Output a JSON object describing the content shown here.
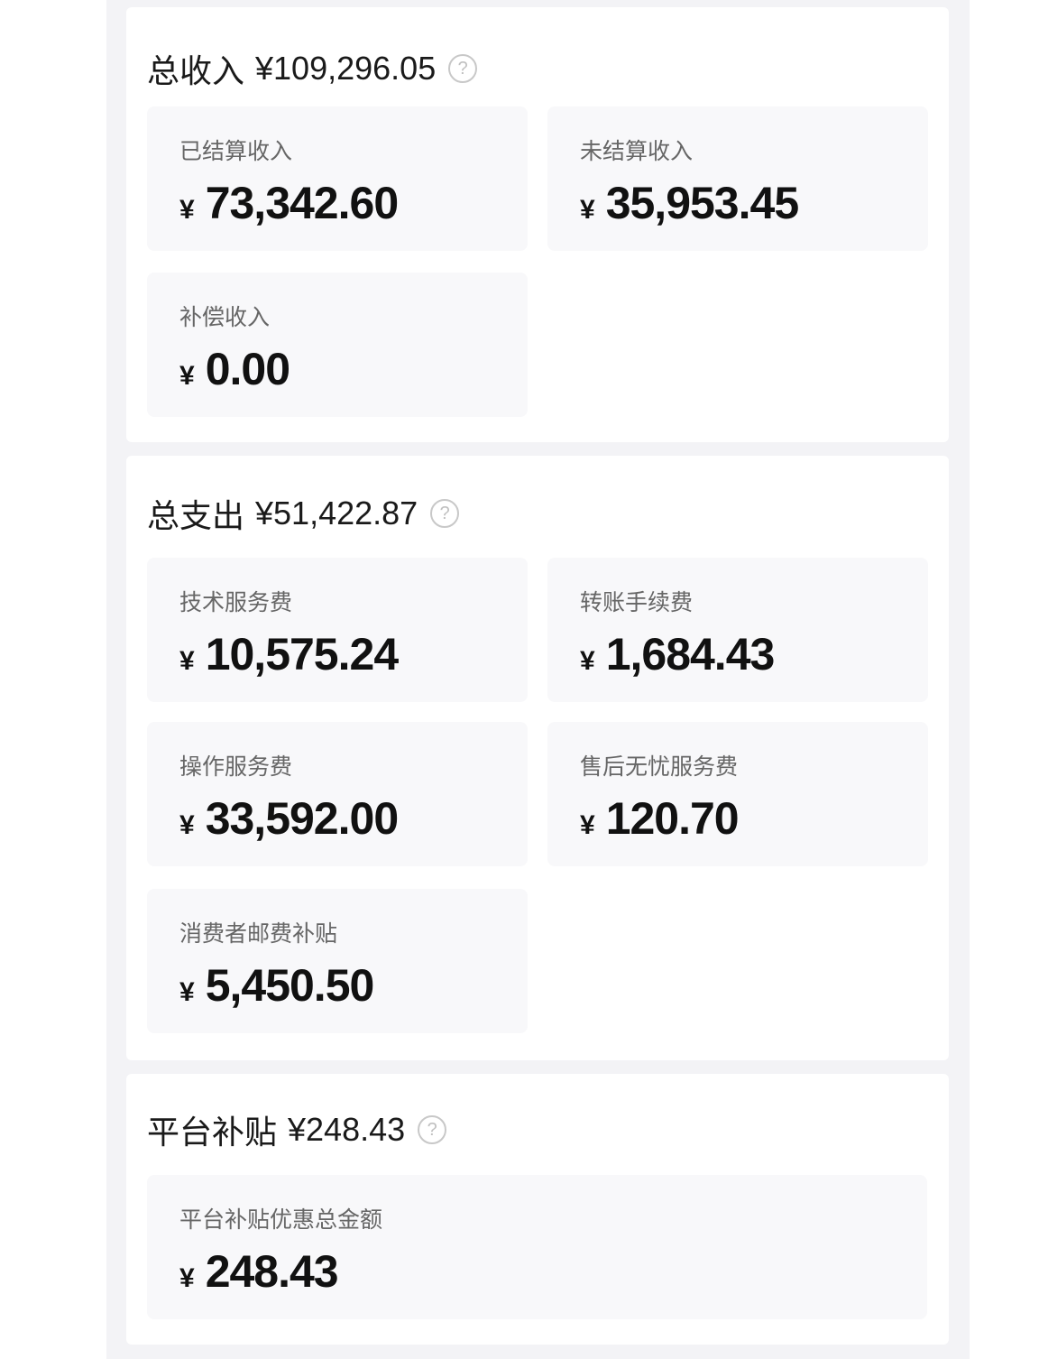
{
  "sections": [
    {
      "title": "总收入",
      "amount": "¥109,296.05",
      "items": [
        {
          "label": "已结算收入",
          "currency": "¥",
          "value": "73,342.60"
        },
        {
          "label": "未结算收入",
          "currency": "¥",
          "value": "35,953.45"
        },
        {
          "label": "补偿收入",
          "currency": "¥",
          "value": "0.00"
        }
      ]
    },
    {
      "title": "总支出",
      "amount": "¥51,422.87",
      "items": [
        {
          "label": "技术服务费",
          "currency": "¥",
          "value": "10,575.24"
        },
        {
          "label": "转账手续费",
          "currency": "¥",
          "value": "1,684.43"
        },
        {
          "label": "操作服务费",
          "currency": "¥",
          "value": "33,592.00"
        },
        {
          "label": "售后无忧服务费",
          "currency": "¥",
          "value": "120.70"
        },
        {
          "label": "消费者邮费补贴",
          "currency": "¥",
          "value": "5,450.50"
        }
      ]
    },
    {
      "title": "平台补贴",
      "amount": "¥248.43",
      "items": [
        {
          "label": "平台补贴优惠总金额",
          "currency": "¥",
          "value": "248.43"
        }
      ]
    }
  ],
  "help_icon": "question-circle-icon",
  "help_glyph": "?"
}
